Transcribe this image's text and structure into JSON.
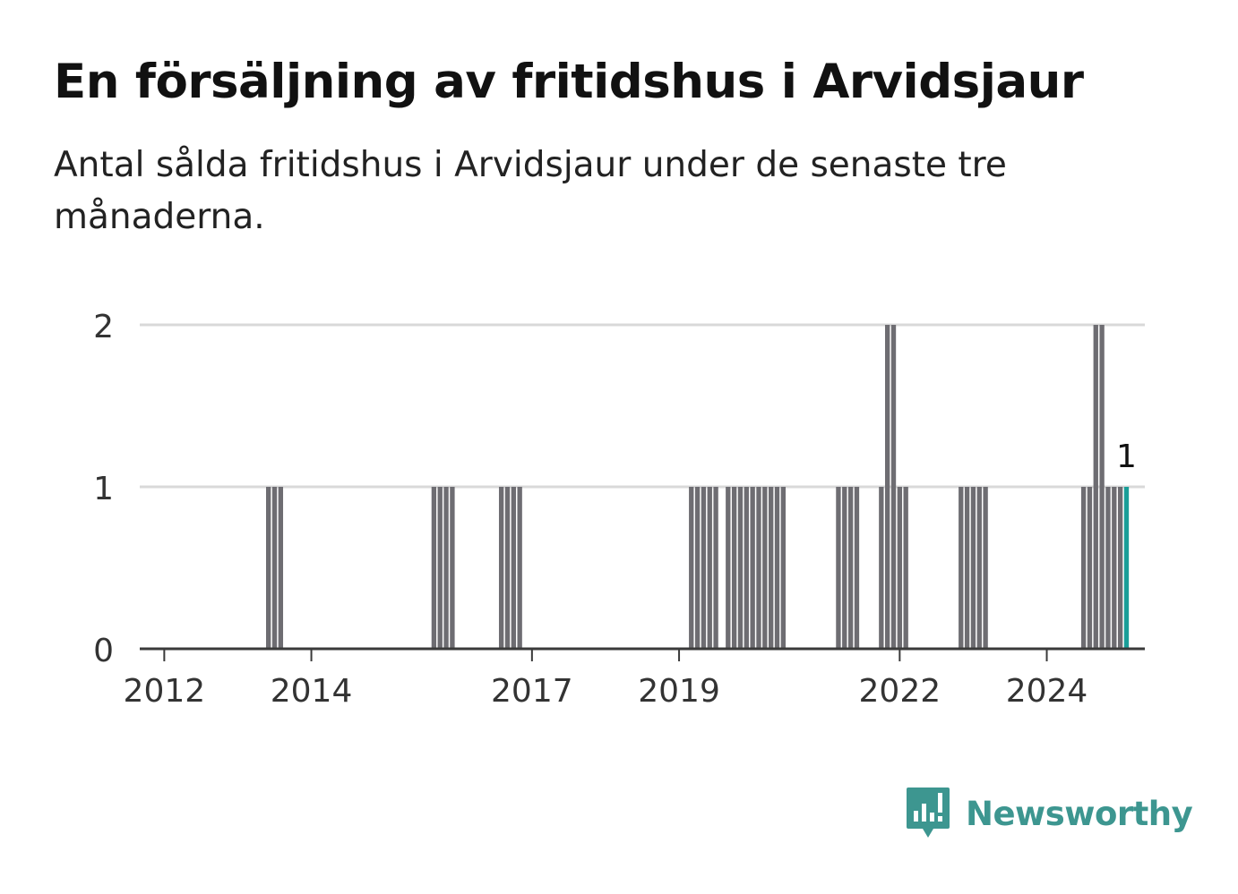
{
  "title": "En försäljning av fritidshus i Arvidsjaur",
  "subtitle": "Antal sålda fritidshus i Arvidsjaur under de senaste tre månaderna.",
  "brand": {
    "name": "Newsworthy",
    "icon": "newsworthy-logo-icon"
  },
  "colors": {
    "bar": "#6e6d72",
    "highlight": "#1a9e98",
    "grid": "#d9d9d9",
    "axis": "#3a3a3a"
  },
  "chart_data": {
    "type": "bar",
    "title": "En försäljning av fritidshus i Arvidsjaur",
    "subtitle": "Antal sålda fritidshus i Arvidsjaur under de senaste tre månaderna.",
    "xlabel": "",
    "ylabel": "",
    "ylim": [
      0,
      2
    ],
    "yticks": [
      "0",
      "1",
      "2"
    ],
    "xticks": [
      "2012",
      "2014",
      "2017",
      "2019",
      "2022",
      "2024"
    ],
    "xtick_dates": [
      "2012-01",
      "2014-01",
      "2017-01",
      "2019-01",
      "2022-01",
      "2024-01"
    ],
    "x_range": [
      "2011-09",
      "2025-05"
    ],
    "grid": true,
    "series": [
      {
        "x": [
          "2013-06",
          "2013-07",
          "2013-08",
          "2015-09",
          "2015-10",
          "2015-11",
          "2015-12",
          "2016-08",
          "2016-09",
          "2016-10",
          "2016-11",
          "2019-03",
          "2019-04",
          "2019-05",
          "2019-06",
          "2019-07",
          "2019-09",
          "2019-10",
          "2019-11",
          "2019-12",
          "2020-01",
          "2020-02",
          "2020-03",
          "2020-04",
          "2020-05",
          "2020-06",
          "2021-03",
          "2021-04",
          "2021-05",
          "2021-06",
          "2021-10",
          "2021-11",
          "2021-12",
          "2022-01",
          "2022-02",
          "2022-11",
          "2022-12",
          "2023-01",
          "2023-02",
          "2023-03",
          "2024-07",
          "2024-08",
          "2024-09",
          "2024-10",
          "2024-11",
          "2024-12",
          "2025-01",
          "2025-02"
        ],
        "values": [
          1,
          1,
          1,
          1,
          1,
          1,
          1,
          1,
          1,
          1,
          1,
          1,
          1,
          1,
          1,
          1,
          1,
          1,
          1,
          1,
          1,
          1,
          1,
          1,
          1,
          1,
          1,
          1,
          1,
          1,
          1,
          2,
          2,
          1,
          1,
          1,
          1,
          1,
          1,
          1,
          1,
          1,
          2,
          2,
          1,
          1,
          1,
          1
        ]
      }
    ],
    "highlight": {
      "x": "2025-02",
      "value": 1,
      "label": "1"
    }
  }
}
